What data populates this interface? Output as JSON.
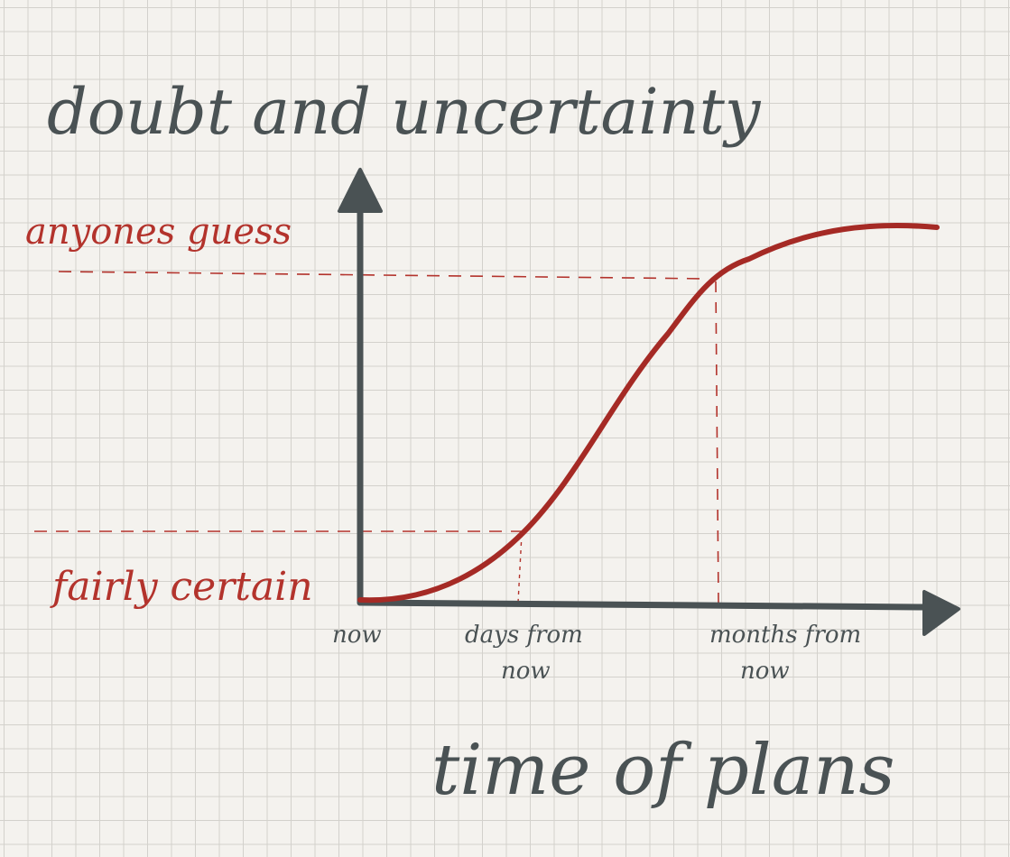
{
  "title": "doubt and uncertainty",
  "x_axis_title": "time of plans",
  "y_levels": {
    "high": "anyones guess",
    "low": "fairly certain"
  },
  "x_ticks": {
    "origin": "now",
    "days": [
      "days from",
      "now"
    ],
    "months": [
      "months from",
      "now"
    ]
  },
  "colors": {
    "ink": "#4a5254",
    "curve": "#a52a25",
    "red_ink": "#b3332c",
    "grid": "#d3d1cc",
    "paper": "#f4f2ee"
  },
  "icons": {
    "y_arrow": "arrow-up-icon",
    "x_arrow": "arrow-right-icon"
  }
}
